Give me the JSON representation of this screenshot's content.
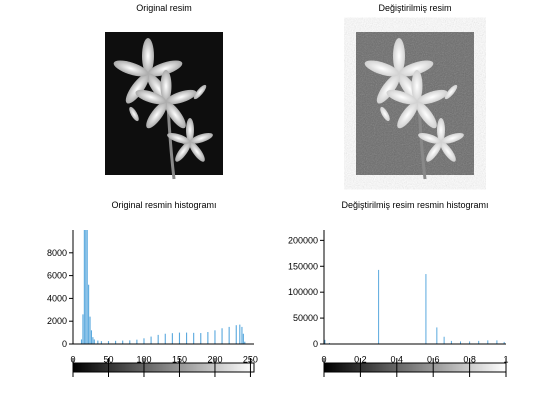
{
  "panels": {
    "original_image": {
      "title": "Original resim"
    },
    "modified_image": {
      "title": "Değiştirilmiş resim"
    }
  },
  "chart_data": [
    {
      "type": "bar",
      "title": "Original resmin histogramı",
      "xlabel": "",
      "ylabel": "",
      "xlim": [
        0,
        255
      ],
      "ylim": [
        0,
        10000
      ],
      "xticks": [
        0,
        50,
        100,
        150,
        200,
        250
      ],
      "yticks": [
        0,
        2000,
        4000,
        6000,
        8000
      ],
      "bar_color": "#5aa9de",
      "grid": false,
      "points": [
        [
          10,
          0
        ],
        [
          12,
          400
        ],
        [
          14,
          2600
        ],
        [
          16,
          10000
        ],
        [
          18,
          10000
        ],
        [
          20,
          10000
        ],
        [
          22,
          5200
        ],
        [
          24,
          2400
        ],
        [
          26,
          1200
        ],
        [
          28,
          600
        ],
        [
          30,
          400
        ],
        [
          35,
          300
        ],
        [
          40,
          250
        ],
        [
          50,
          260
        ],
        [
          60,
          280
        ],
        [
          70,
          300
        ],
        [
          80,
          320
        ],
        [
          90,
          380
        ],
        [
          100,
          500
        ],
        [
          110,
          650
        ],
        [
          120,
          800
        ],
        [
          130,
          900
        ],
        [
          140,
          950
        ],
        [
          150,
          1000
        ],
        [
          160,
          1000
        ],
        [
          170,
          980
        ],
        [
          180,
          960
        ],
        [
          190,
          1050
        ],
        [
          200,
          1200
        ],
        [
          210,
          1380
        ],
        [
          220,
          1500
        ],
        [
          230,
          1650
        ],
        [
          235,
          1700
        ],
        [
          238,
          1500
        ],
        [
          240,
          900
        ],
        [
          242,
          200
        ],
        [
          244,
          0
        ]
      ]
    },
    {
      "type": "bar",
      "title": "Değiştirilmiş resim resmin histogramı",
      "xlabel": "",
      "ylabel": "",
      "xlim": [
        0,
        1
      ],
      "ylim": [
        0,
        220000
      ],
      "xticks": [
        0,
        0.2,
        0.4,
        0.6,
        0.8,
        1
      ],
      "yticks": [
        0,
        50000,
        100000,
        150000,
        200000
      ],
      "bar_color": "#5aa9de",
      "grid": false,
      "points": [
        [
          0.0,
          22000
        ],
        [
          0.005,
          8000
        ],
        [
          0.03,
          2000
        ],
        [
          0.3,
          143000
        ],
        [
          0.56,
          135000
        ],
        [
          0.62,
          32000
        ],
        [
          0.66,
          14000
        ],
        [
          0.7,
          6000
        ],
        [
          0.75,
          5000
        ],
        [
          0.8,
          5000
        ],
        [
          0.85,
          6000
        ],
        [
          0.9,
          7000
        ],
        [
          0.95,
          7000
        ],
        [
          0.99,
          4000
        ]
      ]
    }
  ]
}
